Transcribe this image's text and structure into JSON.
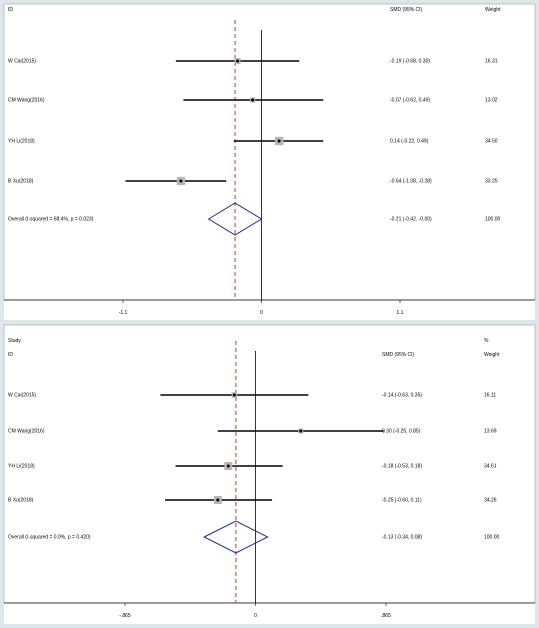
{
  "chart_data": [
    {
      "type": "forest",
      "headers": {
        "study": "",
        "id": "ID",
        "effect": "SMD (95% CI)",
        "weight_top": "",
        "weight": "Weight"
      },
      "xlim": [
        -1.1,
        1.1
      ],
      "null_line": 0,
      "pooled_line": -0.21,
      "x_ticks": [
        {
          "value": -1.1,
          "label": "-1.1"
        },
        {
          "value": 0,
          "label": "0"
        },
        {
          "value": 1.1,
          "label": "1.1"
        }
      ],
      "studies": [
        {
          "label": "W Cai(2015)",
          "est": -0.19,
          "lo": -0.68,
          "hi": 0.3,
          "ci_text": "-0.19 (-0.68, 0.30)",
          "weight": "16.31"
        },
        {
          "label": "CM Wang(2016)",
          "est": -0.07,
          "lo": -0.62,
          "hi": 0.49,
          "ci_text": "-0.07 (-0.62, 0.49)",
          "weight": "13.02"
        },
        {
          "label": "YH Li(2018)",
          "est": 0.14,
          "lo": -0.22,
          "hi": 0.49,
          "ci_text": "0.14 (-0.22, 0.49)",
          "weight": "34.50"
        },
        {
          "label": "B Xu(2018)",
          "est": -0.64,
          "lo": -1.08,
          "hi": -0.28,
          "ci_text": "-0.64 (-1.08, -0.28)",
          "weight": "33.25"
        }
      ],
      "overall": {
        "label": "Overall (I-squared = 68.4%, p = 0.023)",
        "est": -0.21,
        "lo": -0.42,
        "hi": 0.0,
        "ci_text": "-0.21 (-0.42, -0.00)",
        "weight": "100.00"
      }
    },
    {
      "type": "forest",
      "headers": {
        "study": "Study",
        "id": "ID",
        "effect": "SMD (95% CI)",
        "weight_top": "%",
        "weight": "Weight"
      },
      "xlim": [
        -0.865,
        0.865
      ],
      "null_line": 0,
      "pooled_line": -0.13,
      "x_ticks": [
        {
          "value": -0.865,
          "label": "-.865"
        },
        {
          "value": 0,
          "label": "0"
        },
        {
          "value": 0.865,
          "label": ".865"
        }
      ],
      "studies": [
        {
          "label": "W Cai(2015)",
          "est": -0.14,
          "lo": -0.63,
          "hi": 0.35,
          "ci_text": "-0.14 (-0.63, 0.35)",
          "weight": "16.11"
        },
        {
          "label": "CM Wang(2016)",
          "est": 0.3,
          "lo": -0.25,
          "hi": 0.85,
          "ci_text": "0.30 (-0.25, 0.85)",
          "weight": "13.69"
        },
        {
          "label": "YH Li(2018)",
          "est": -0.18,
          "lo": -0.53,
          "hi": 0.18,
          "ci_text": "-0.18 (-0.53, 0.18)",
          "weight": "34.61"
        },
        {
          "label": "B Xu(2018)",
          "est": -0.25,
          "lo": -0.6,
          "hi": 0.11,
          "ci_text": "-0.25 (-0.60, 0.11)",
          "weight": "34.26"
        }
      ],
      "overall": {
        "label": "Overall (I-squared = 0.0%, p = 0.420)",
        "est": -0.13,
        "lo": -0.34,
        "hi": 0.08,
        "ci_text": "-0.13 (-0.34, 0.08)",
        "weight": "100.00"
      }
    }
  ]
}
